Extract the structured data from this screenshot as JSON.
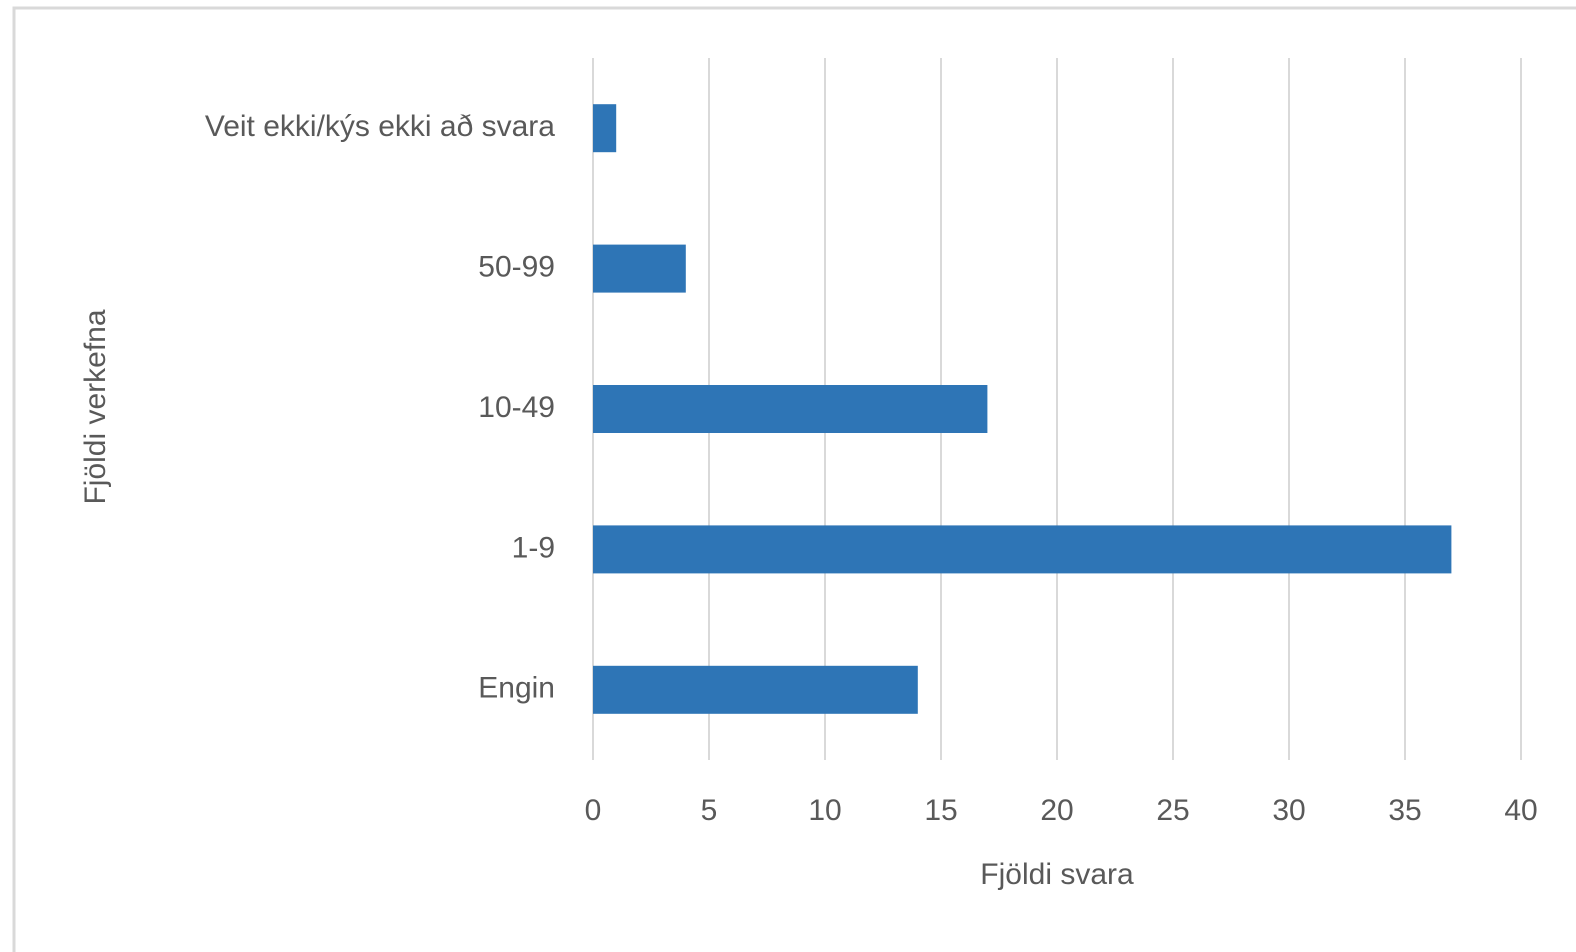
{
  "chart_data": {
    "type": "bar",
    "orientation": "horizontal",
    "categories": [
      "Engin",
      "1-9",
      "10-49",
      "50-99",
      "Veit ekki/kýs ekki að svara"
    ],
    "values": [
      14,
      37,
      17,
      4,
      1
    ],
    "color": "#2e75b6",
    "xlim": [
      0,
      40
    ],
    "xticks": [
      0,
      5,
      10,
      15,
      20,
      25,
      30,
      35,
      40
    ],
    "xlabel": "Fjöldi svara",
    "ylabel": "Fjöldi verkefna",
    "grid": true
  }
}
